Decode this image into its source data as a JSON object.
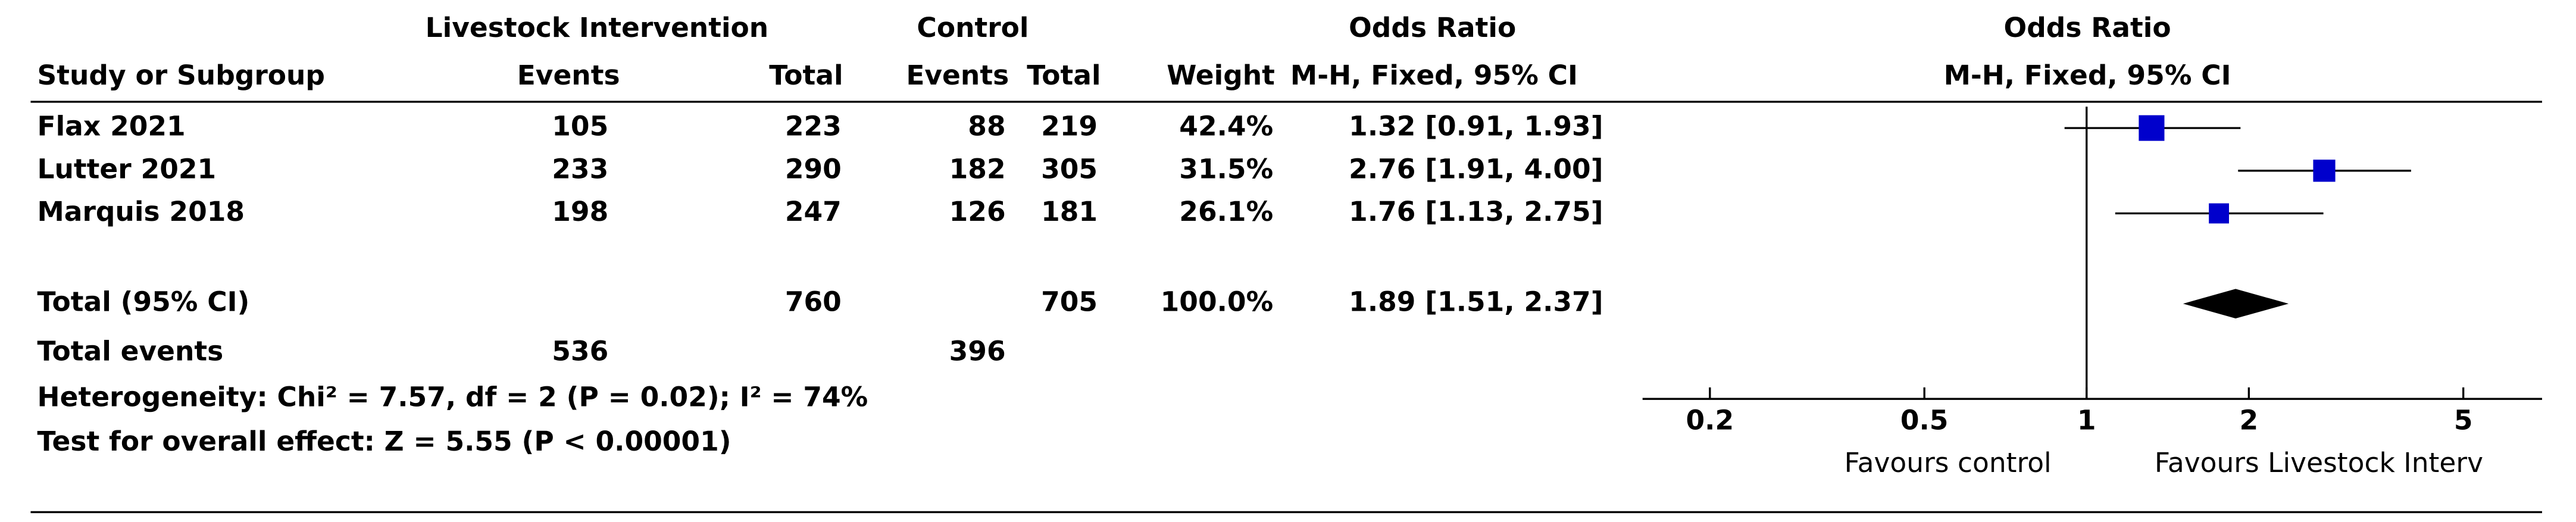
{
  "chart_data": {
    "type": "forest",
    "headers": {
      "group1": "Livestock Intervention",
      "group2": "Control",
      "study": "Study or Subgroup",
      "events": "Events",
      "total": "Total",
      "weight": "Weight",
      "or_title": "Odds Ratio",
      "or_method": "M-H, Fixed, 95% CI"
    },
    "studies": [
      "Flax 2021",
      "Lutter 2021",
      "Marquis 2018"
    ],
    "exp_events": [
      105,
      233,
      198
    ],
    "exp_total": [
      223,
      290,
      247
    ],
    "ctrl_events": [
      88,
      182,
      126
    ],
    "ctrl_total": [
      219,
      305,
      181
    ],
    "weight": {
      "values": [
        42.4,
        31.5,
        26.1
      ],
      "value_labels": [
        "42.4%",
        "31.5%",
        "26.1%"
      ]
    },
    "or": {
      "values": [
        1.32,
        2.76,
        1.76
      ],
      "lower": [
        0.91,
        1.91,
        1.13
      ],
      "upper": [
        1.93,
        4.0,
        2.75
      ],
      "value_labels": [
        "1.32 [0.91, 1.93]",
        "2.76 [1.91, 4.00]",
        "1.76 [1.13, 2.75]"
      ]
    },
    "color": "#0000cc",
    "total": {
      "label": "Total (95% CI)",
      "exp_total": 760,
      "ctrl_total": 705,
      "weight": 100.0,
      "weight_label": "100.0%",
      "or": 1.89,
      "lower": 1.51,
      "upper": 2.37,
      "or_label": "1.89 [1.51, 2.37]"
    },
    "total_events": {
      "label": "Total events",
      "exp": 536,
      "ctrl": 396
    },
    "heterogeneity": "Heterogeneity: Chi² = 7.57, df = 2 (P = 0.02); I² = 74%",
    "overall_effect": "Test for overall effect: Z = 5.55 (P < 0.00001)",
    "log_scale": true,
    "xlim": [
      0.15,
      7
    ],
    "xticks": [
      0.2,
      0.5,
      1,
      2,
      5
    ],
    "favours": [
      "Favours control",
      "Favours Livestock Interv"
    ]
  }
}
